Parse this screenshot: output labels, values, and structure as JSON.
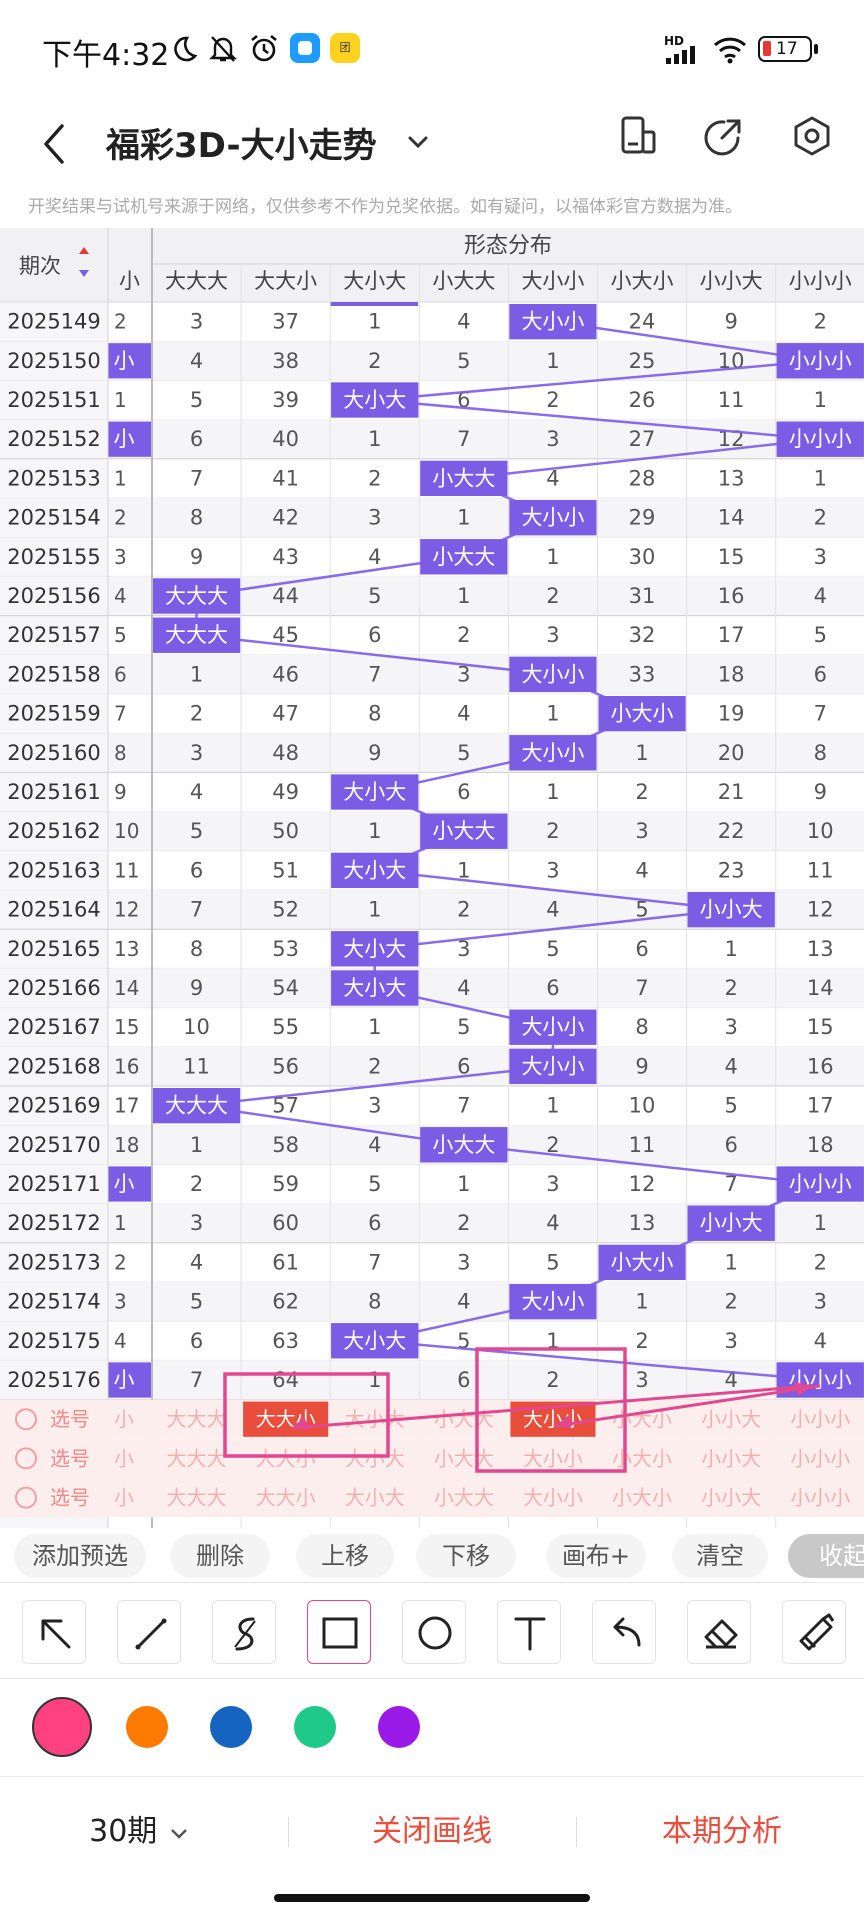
{
  "status": {
    "time": "下午4:32",
    "battery": "17",
    "network": "HD"
  },
  "appbar": {
    "title": "福彩3D-大小走势"
  },
  "disclaimer": "开奖结果与试机号来源于网络，仅供参考不作为兑奖依据。如有疑问，以福体彩官方数据为准。",
  "table": {
    "group_header": "形态分布",
    "period_header": "期次",
    "columns": [
      "小",
      "大大大",
      "大大小",
      "大小大",
      "小大大",
      "大小小",
      "小大小",
      "小小大",
      "小小小"
    ],
    "rows": [
      {
        "p": "2025149",
        "c0": "2",
        "v": [
          "3",
          "37",
          "1",
          "4",
          "大小小",
          "24",
          "9",
          "2"
        ],
        "hit": 5
      },
      {
        "p": "2025150",
        "c0": "小",
        "v": [
          "4",
          "38",
          "2",
          "5",
          "1",
          "25",
          "10",
          "小小小"
        ],
        "hit": 8
      },
      {
        "p": "2025151",
        "c0": "1",
        "v": [
          "5",
          "39",
          "大小大",
          "6",
          "2",
          "26",
          "11",
          "1"
        ],
        "hit": 3
      },
      {
        "p": "2025152",
        "c0": "小",
        "v": [
          "6",
          "40",
          "1",
          "7",
          "3",
          "27",
          "12",
          "小小小"
        ],
        "hit": 8
      },
      {
        "p": "2025153",
        "c0": "1",
        "v": [
          "7",
          "41",
          "2",
          "小大大",
          "4",
          "28",
          "13",
          "1"
        ],
        "hit": 4
      },
      {
        "p": "2025154",
        "c0": "2",
        "v": [
          "8",
          "42",
          "3",
          "1",
          "大小小",
          "29",
          "14",
          "2"
        ],
        "hit": 5
      },
      {
        "p": "2025155",
        "c0": "3",
        "v": [
          "9",
          "43",
          "4",
          "小大大",
          "1",
          "30",
          "15",
          "3"
        ],
        "hit": 4
      },
      {
        "p": "2025156",
        "c0": "4",
        "v": [
          "大大大",
          "44",
          "5",
          "1",
          "2",
          "31",
          "16",
          "4"
        ],
        "hit": 1
      },
      {
        "p": "2025157",
        "c0": "5",
        "v": [
          "大大大",
          "45",
          "6",
          "2",
          "3",
          "32",
          "17",
          "5"
        ],
        "hit": 1
      },
      {
        "p": "2025158",
        "c0": "6",
        "v": [
          "1",
          "46",
          "7",
          "3",
          "大小小",
          "33",
          "18",
          "6"
        ],
        "hit": 5
      },
      {
        "p": "2025159",
        "c0": "7",
        "v": [
          "2",
          "47",
          "8",
          "4",
          "1",
          "小大小",
          "19",
          "7"
        ],
        "hit": 6
      },
      {
        "p": "2025160",
        "c0": "8",
        "v": [
          "3",
          "48",
          "9",
          "5",
          "大小小",
          "1",
          "20",
          "8"
        ],
        "hit": 5
      },
      {
        "p": "2025161",
        "c0": "9",
        "v": [
          "4",
          "49",
          "大小大",
          "6",
          "1",
          "2",
          "21",
          "9"
        ],
        "hit": 3
      },
      {
        "p": "2025162",
        "c0": "10",
        "v": [
          "5",
          "50",
          "1",
          "小大大",
          "2",
          "3",
          "22",
          "10"
        ],
        "hit": 4
      },
      {
        "p": "2025163",
        "c0": "11",
        "v": [
          "6",
          "51",
          "大小大",
          "1",
          "3",
          "4",
          "23",
          "11"
        ],
        "hit": 3
      },
      {
        "p": "2025164",
        "c0": "12",
        "v": [
          "7",
          "52",
          "1",
          "2",
          "4",
          "5",
          "小小大",
          "12"
        ],
        "hit": 7
      },
      {
        "p": "2025165",
        "c0": "13",
        "v": [
          "8",
          "53",
          "大小大",
          "3",
          "5",
          "6",
          "1",
          "13"
        ],
        "hit": 3
      },
      {
        "p": "2025166",
        "c0": "14",
        "v": [
          "9",
          "54",
          "大小大",
          "4",
          "6",
          "7",
          "2",
          "14"
        ],
        "hit": 3
      },
      {
        "p": "2025167",
        "c0": "15",
        "v": [
          "10",
          "55",
          "1",
          "5",
          "大小小",
          "8",
          "3",
          "15"
        ],
        "hit": 5
      },
      {
        "p": "2025168",
        "c0": "16",
        "v": [
          "11",
          "56",
          "2",
          "6",
          "大小小",
          "9",
          "4",
          "16"
        ],
        "hit": 5
      },
      {
        "p": "2025169",
        "c0": "17",
        "v": [
          "大大大",
          "57",
          "3",
          "7",
          "1",
          "10",
          "5",
          "17"
        ],
        "hit": 1
      },
      {
        "p": "2025170",
        "c0": "18",
        "v": [
          "1",
          "58",
          "4",
          "小大大",
          "2",
          "11",
          "6",
          "18"
        ],
        "hit": 4
      },
      {
        "p": "2025171",
        "c0": "小",
        "v": [
          "2",
          "59",
          "5",
          "1",
          "3",
          "12",
          "7",
          "小小小"
        ],
        "hit": 8
      },
      {
        "p": "2025172",
        "c0": "1",
        "v": [
          "3",
          "60",
          "6",
          "2",
          "4",
          "13",
          "小小大",
          "1"
        ],
        "hit": 7
      },
      {
        "p": "2025173",
        "c0": "2",
        "v": [
          "4",
          "61",
          "7",
          "3",
          "5",
          "小大小",
          "1",
          "2"
        ],
        "hit": 6
      },
      {
        "p": "2025174",
        "c0": "3",
        "v": [
          "5",
          "62",
          "8",
          "4",
          "大小小",
          "1",
          "2",
          "3"
        ],
        "hit": 5
      },
      {
        "p": "2025175",
        "c0": "4",
        "v": [
          "6",
          "63",
          "大小大",
          "5",
          "1",
          "2",
          "3",
          "4"
        ],
        "hit": 3
      },
      {
        "p": "2025176",
        "c0": "小",
        "v": [
          "7",
          "64",
          "1",
          "6",
          "2",
          "3",
          "4",
          "小小小"
        ],
        "hit": 8
      }
    ],
    "select_label": "选号",
    "select_rows": 3,
    "selected": [
      {
        "row": 0,
        "col": 2,
        "label": "大大小"
      },
      {
        "row": 0,
        "col": 5,
        "label": "大小小"
      }
    ]
  },
  "actions": [
    "添加预选",
    "删除",
    "上移",
    "下移",
    "画布+",
    "清空",
    "收起"
  ],
  "tools": [
    {
      "name": "arrow-tool-icon"
    },
    {
      "name": "line-tool-icon"
    },
    {
      "name": "curve-tool-icon"
    },
    {
      "name": "rectangle-tool-icon",
      "active": true
    },
    {
      "name": "circle-tool-icon"
    },
    {
      "name": "text-tool-icon"
    },
    {
      "name": "undo-icon"
    },
    {
      "name": "eraser-icon"
    },
    {
      "name": "clear-all-icon"
    }
  ],
  "colors": [
    "#ff4081",
    "#ff7a00",
    "#1565c0",
    "#1ec98a",
    "#9a1be8"
  ],
  "bottom": {
    "period": "30期",
    "close_line": "关闭画线",
    "analysis": "本期分析"
  },
  "theme": {
    "accent": "#7b5ce5",
    "hl": "#e53935",
    "red": "#e94d3c",
    "pink": "#e2478f"
  }
}
